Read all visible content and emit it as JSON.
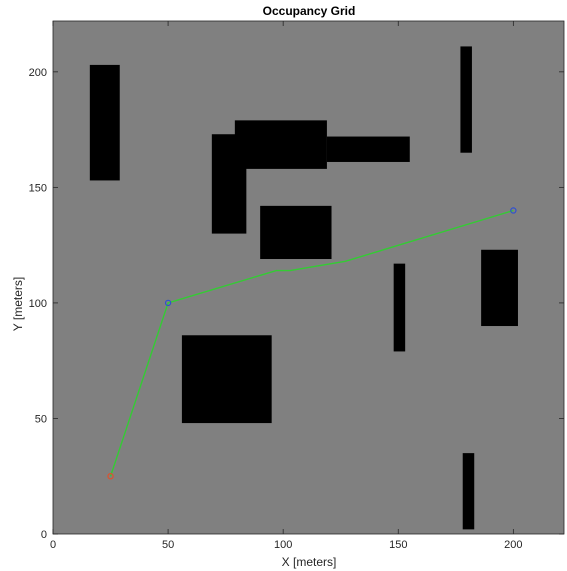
{
  "chart_data": {
    "type": "scatter",
    "title": "Occupancy Grid",
    "xlabel": "X [meters]",
    "ylabel": "Y [meters]",
    "xlim": [
      0,
      222
    ],
    "ylim": [
      0,
      222
    ],
    "xticks": [
      0,
      50,
      100,
      150,
      200
    ],
    "yticks": [
      0,
      50,
      100,
      150,
      200
    ],
    "grid": false,
    "colors": {
      "free_space": "#808080",
      "obstacle": "#000000",
      "path": "#33cc33",
      "start_marker": "#e0502a",
      "waypoint_marker": "#3050d0"
    },
    "obstacles": [
      {
        "x": [
          16,
          29
        ],
        "y": [
          153,
          203
        ]
      },
      {
        "x": [
          79,
          119
        ],
        "y": [
          158,
          179
        ]
      },
      {
        "x": [
          69,
          84
        ],
        "y": [
          130,
          173
        ]
      },
      {
        "x": [
          119,
          155
        ],
        "y": [
          161,
          172
        ]
      },
      {
        "x": [
          90,
          121
        ],
        "y": [
          119,
          142
        ]
      },
      {
        "x": [
          177,
          182
        ],
        "y": [
          165,
          211
        ]
      },
      {
        "x": [
          186,
          202
        ],
        "y": [
          90,
          123
        ]
      },
      {
        "x": [
          148,
          153
        ],
        "y": [
          79,
          117
        ]
      },
      {
        "x": [
          56,
          95
        ],
        "y": [
          48,
          86
        ]
      },
      {
        "x": [
          178,
          183
        ],
        "y": [
          2,
          35
        ]
      }
    ],
    "path": {
      "x": [
        25,
        50,
        97,
        103,
        127,
        200
      ],
      "y": [
        25,
        100,
        114,
        114,
        118,
        140
      ]
    },
    "markers": [
      {
        "role": "start",
        "x": 25,
        "y": 25
      },
      {
        "role": "waypoint",
        "x": 50,
        "y": 100
      },
      {
        "role": "waypoint",
        "x": 200,
        "y": 140
      }
    ]
  }
}
